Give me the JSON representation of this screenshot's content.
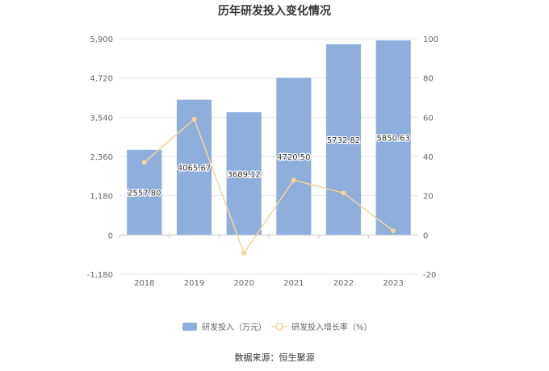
{
  "chart_data": {
    "type": "bar",
    "title": "历年研发投入变化情况",
    "categories": [
      "2018",
      "2019",
      "2020",
      "2021",
      "2022",
      "2023"
    ],
    "series": [
      {
        "name": "研发投入（万元）",
        "type": "bar",
        "axis": "left",
        "color": "#8eaedb",
        "values": [
          2557.8,
          4065.67,
          3689.12,
          4720.5,
          5732.82,
          5850.63
        ],
        "labels": [
          "2557.80",
          "4065.67",
          "3689.12",
          "4720.50",
          "5732.82",
          "5850.63"
        ]
      },
      {
        "name": "研发投入增长率（%）",
        "type": "line",
        "axis": "right",
        "color": "#f8d49a",
        "values": [
          37,
          59,
          -9.3,
          28,
          21.4,
          2.1
        ]
      }
    ],
    "y_left": {
      "ticks": [
        "5,900",
        "4,720",
        "3,540",
        "2,360",
        "1,180",
        "0",
        "-1,180"
      ],
      "range": [
        -1180,
        5900
      ]
    },
    "y_right": {
      "ticks": [
        "100",
        "80",
        "60",
        "40",
        "20",
        "0",
        "-20"
      ],
      "range": [
        -20,
        100
      ]
    },
    "grid": true,
    "legend_position": "bottom"
  },
  "source_text": "数据来源：恒生聚源"
}
